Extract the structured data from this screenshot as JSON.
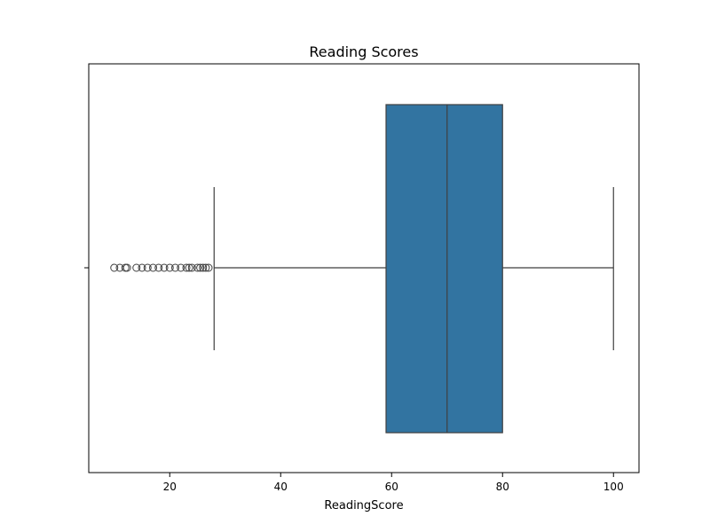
{
  "chart_data": {
    "type": "box",
    "title": "Reading Scores",
    "xlabel": "ReadingScore",
    "ylabel": "",
    "xlim": [
      5.4,
      104.6
    ],
    "x_ticks": [
      20,
      40,
      60,
      80,
      100
    ],
    "orientation": "horizontal",
    "grid": false,
    "legend": "none",
    "colors": {
      "box": "#3274a1",
      "line": "#3f3f3f",
      "frame": "#000000"
    },
    "box": {
      "whisker_low": 28,
      "q1": 59,
      "median": 70,
      "q3": 80,
      "whisker_high": 100
    },
    "outliers": [
      10,
      11,
      12,
      12.3,
      14,
      15,
      16,
      17,
      18,
      19,
      20,
      21,
      22,
      23,
      23.5,
      24,
      25,
      25.5,
      26,
      26.5,
      27
    ]
  }
}
